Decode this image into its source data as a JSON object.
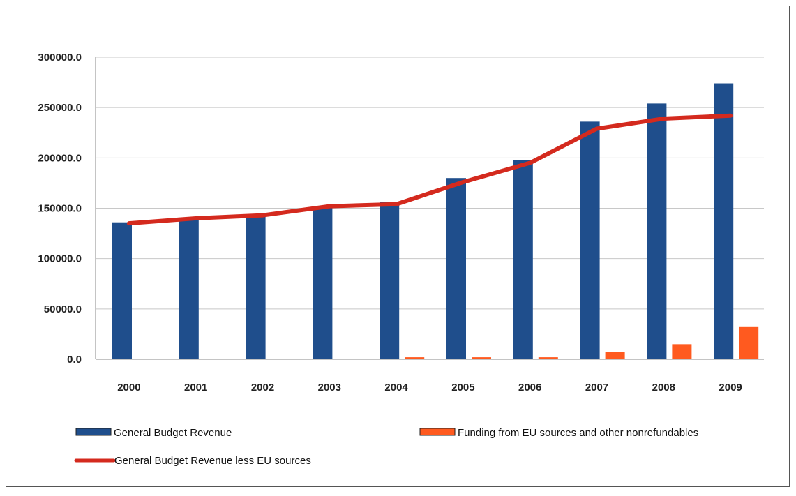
{
  "chart_data": {
    "type": "bar",
    "title": "",
    "xlabel": "",
    "ylabel": "",
    "categories": [
      "2000",
      "2001",
      "2002",
      "2003",
      "2004",
      "2005",
      "2006",
      "2007",
      "2008",
      "2009"
    ],
    "ylim": [
      0,
      300000
    ],
    "yticks": [
      "0.0",
      "50000.0",
      "100000.0",
      "150000.0",
      "200000.0",
      "250000.0",
      "300000.0"
    ],
    "grid": true,
    "legend_position": "bottom",
    "series": [
      {
        "name": "General Budget Revenue",
        "type": "bar",
        "color": "#1F4E8C",
        "values": [
          136000,
          140000,
          143000,
          152000,
          156000,
          180000,
          198000,
          236000,
          254000,
          274000
        ]
      },
      {
        "name": "Funding from EU sources and other nonrefundables",
        "type": "bar",
        "color": "#FF5A1F",
        "values": [
          0,
          0,
          0,
          0,
          2000,
          2000,
          2000,
          7000,
          15000,
          32000
        ]
      },
      {
        "name": "General Budget Revenue less EU sources",
        "type": "line",
        "color": "#D42A1E",
        "values": [
          135000,
          140000,
          143000,
          152000,
          154000,
          176000,
          195000,
          229000,
          239000,
          242000
        ]
      }
    ]
  }
}
